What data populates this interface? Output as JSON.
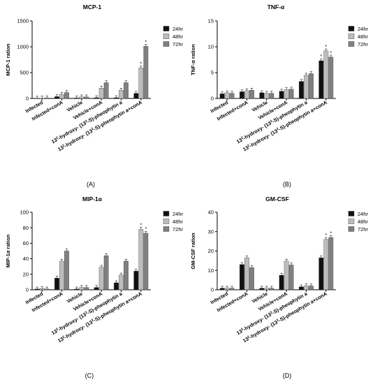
{
  "colors": {
    "h24": "#111111",
    "h48": "#bdbdbd",
    "h72": "#808080",
    "axis": "#000000"
  },
  "chart_data": [
    {
      "panel_label": "(A)",
      "type": "bar",
      "title": "MCP-1",
      "ylabel": "MCP-1 ration",
      "xlabel": "",
      "ylim": [
        0,
        1500
      ],
      "yticks": [
        "0",
        "500",
        "1000",
        "1500"
      ],
      "legend_position": "top-right",
      "categories": [
        "Infected",
        "Infected+conA",
        "Vehicle",
        "Vehicle+conA",
        "13²-hydroxy- (13²-S)-pheophytin a",
        "13²-hydroxy- (13²-S)-pheophytin a+conA"
      ],
      "series": [
        {
          "name": "24hr",
          "values": [
            5,
            35,
            10,
            15,
            15,
            100
          ]
        },
        {
          "name": "48hr",
          "values": [
            8,
            80,
            30,
            200,
            160,
            590
          ]
        },
        {
          "name": "72hr",
          "values": [
            12,
            115,
            30,
            305,
            305,
            1010
          ]
        }
      ],
      "annotations": [
        {
          "category_index": 5,
          "series_index": 1,
          "text": "*"
        },
        {
          "category_index": 5,
          "series_index": 2,
          "text": "*"
        }
      ]
    },
    {
      "panel_label": "(B)",
      "type": "bar",
      "title": "TNF-α",
      "ylabel": "TNF-α ration",
      "xlabel": "",
      "ylim": [
        0,
        15
      ],
      "yticks": [
        "0",
        "5",
        "10",
        "15"
      ],
      "legend_position": "top-right",
      "categories": [
        "Infected",
        "Infected+conA",
        "Vehicle",
        "Vehicle+conA",
        "13²-hydroxy- (13²-S)-pheophytin a",
        "13²-hydroxy- (13²-S)-pheophytin a+conA"
      ],
      "series": [
        {
          "name": "24hr",
          "values": [
            0.9,
            1.3,
            1.1,
            1.4,
            3.3,
            7.3
          ]
        },
        {
          "name": "48hr",
          "values": [
            1.1,
            1.5,
            1.0,
            1.7,
            4.5,
            9.2
          ]
        },
        {
          "name": "72hr",
          "values": [
            1.0,
            1.6,
            1.0,
            1.8,
            4.8,
            8.0
          ]
        }
      ],
      "annotations": [
        {
          "category_index": 5,
          "series_index": 0,
          "text": "*"
        },
        {
          "category_index": 5,
          "series_index": 1,
          "text": "*"
        },
        {
          "category_index": 5,
          "series_index": 2,
          "text": "*"
        }
      ]
    },
    {
      "panel_label": "(C)",
      "type": "bar",
      "title": "MIP-1α",
      "ylabel": "MIP-1α ration",
      "xlabel": "",
      "ylim": [
        0,
        100
      ],
      "yticks": [
        "0",
        "20",
        "40",
        "60",
        "80",
        "100"
      ],
      "legend_position": "top-right",
      "categories": [
        "Infected",
        "Infected+conA",
        "Vehicle",
        "Vehicle+conA",
        "13²-hydroxy- (13²-S)-pheophytin a",
        "13²-hydroxy- (13²-S)-pheophytin a+conA"
      ],
      "series": [
        {
          "name": "24hr",
          "values": [
            1,
            15,
            1,
            3,
            9,
            24
          ]
        },
        {
          "name": "48hr",
          "values": [
            1.5,
            37,
            3,
            29,
            19,
            78
          ]
        },
        {
          "name": "72hr",
          "values": [
            1,
            50,
            3,
            44,
            37,
            73
          ]
        }
      ],
      "annotations": [
        {
          "category_index": 5,
          "series_index": 1,
          "text": "*"
        },
        {
          "category_index": 5,
          "series_index": 2,
          "text": "*"
        }
      ]
    },
    {
      "panel_label": "(D)",
      "type": "bar",
      "title": "GM-CSF",
      "ylabel": "GM-CSF ration",
      "xlabel": "",
      "ylim": [
        0,
        40
      ],
      "yticks": [
        "0",
        "10",
        "20",
        "30",
        "40"
      ],
      "legend_position": "top-right",
      "categories": [
        "Infected",
        "Infected+conA",
        "Vehicle",
        "Vehicle+conA",
        "13²-hydroxy- (13²-S)-pheophytin a",
        "13²-hydroxy- (13²-S)-pheophytin a+conA"
      ],
      "series": [
        {
          "name": "24hr",
          "values": [
            0.8,
            13,
            0.8,
            7.5,
            1.5,
            16.5
          ]
        },
        {
          "name": "48hr",
          "values": [
            0.8,
            16.5,
            0.8,
            14.8,
            2,
            26
          ]
        },
        {
          "name": "72hr",
          "values": [
            0.8,
            11.5,
            0.8,
            12.8,
            2,
            27
          ]
        }
      ],
      "annotations": [
        {
          "category_index": 5,
          "series_index": 1,
          "text": "*"
        },
        {
          "category_index": 5,
          "series_index": 2,
          "text": "*"
        }
      ]
    }
  ]
}
